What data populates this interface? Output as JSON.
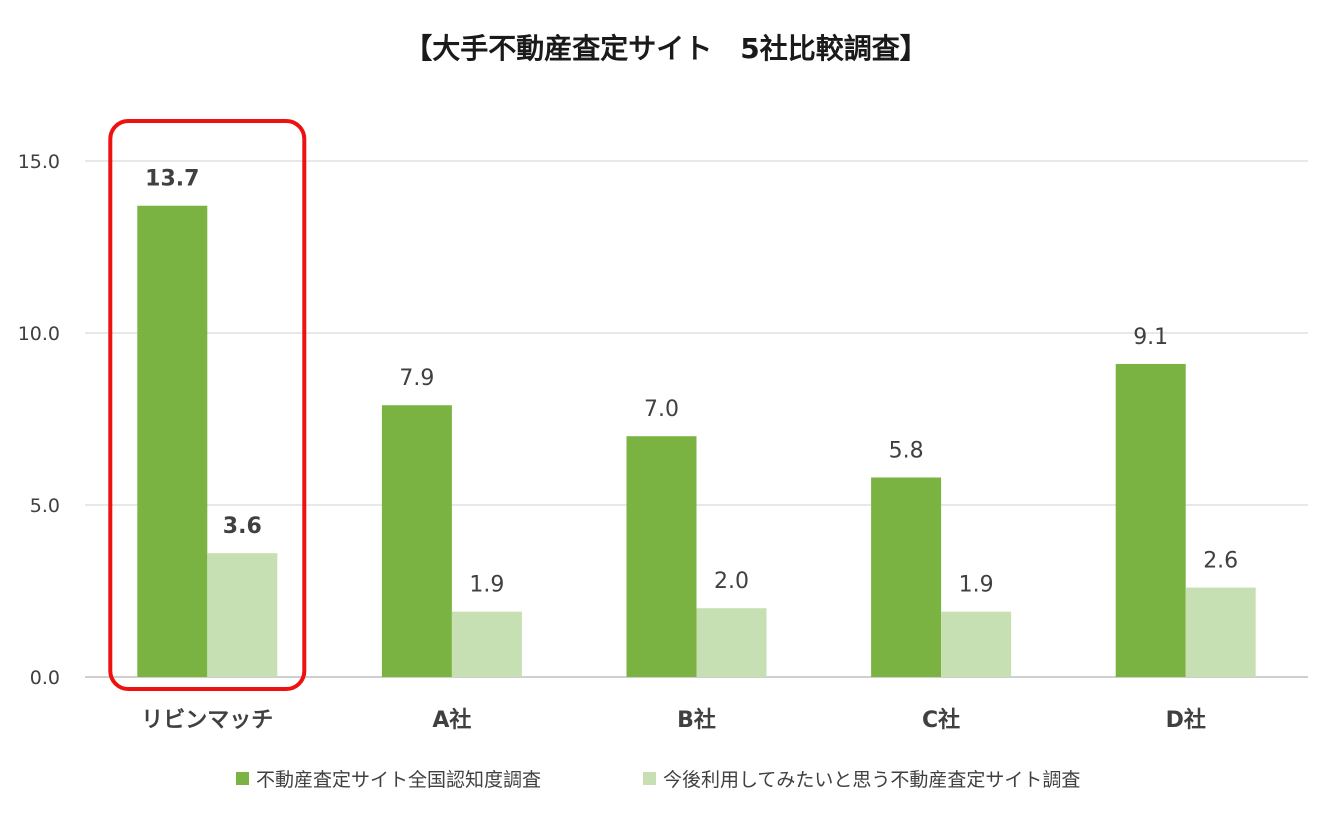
{
  "chart_data": {
    "type": "bar",
    "title": "【大手不動産査定サイト　5社比較調査】",
    "categories": [
      "リビンマッチ",
      "A社",
      "B社",
      "C社",
      "D社"
    ],
    "series": [
      {
        "name": "不動産査定サイト全国認知度調査",
        "values": [
          13.7,
          7.9,
          7.0,
          5.8,
          9.1
        ],
        "labels": [
          "13.7",
          "7.9",
          "7.0",
          "5.8",
          "9.1"
        ]
      },
      {
        "name": "今後利用してみたいと思う不動産査定サイト調査",
        "values": [
          3.6,
          1.9,
          2.0,
          1.9,
          2.6
        ],
        "labels": [
          "3.6",
          "1.9",
          "2.0",
          "1.9",
          "2.6"
        ]
      }
    ],
    "y_ticks": [
      "0.0",
      "5.0",
      "10.0",
      "15.0"
    ],
    "ylim": [
      0,
      15
    ],
    "xlabel": "",
    "ylabel": "",
    "grid": true,
    "legend_position": "bottom",
    "highlight_category": "リビンマッチ",
    "colors": {
      "series1": "#7ab342",
      "series2": "#c6e0b4",
      "highlight": "#ee1111",
      "grid": "#d9d9d9"
    }
  }
}
